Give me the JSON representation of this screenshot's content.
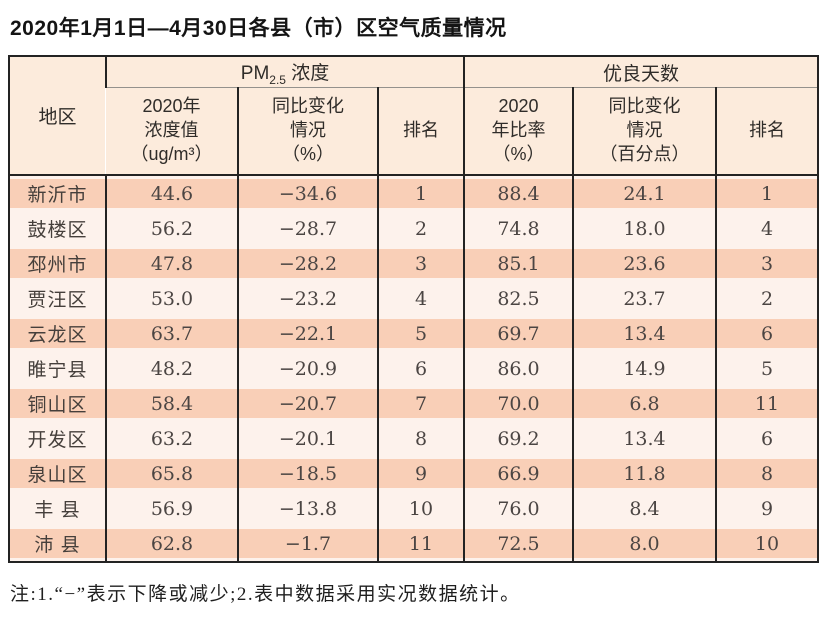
{
  "title": "2020年1月1日—4月30日各县（市）区空气质量情况",
  "note": "注:1.“−”表示下降或减少;2.表中数据采用实况数据统计。",
  "colors": {
    "stripe_salmon": "#f9cfb7",
    "row_light": "#fdf2ec",
    "header_bg": "#fcebdc",
    "grid_border": "#232323",
    "group_divider_gray": "#94918c"
  },
  "table": {
    "header": {
      "region": "地区",
      "pm_group": {
        "prefix": "PM",
        "sub": "2.5",
        "suffix": " 浓度"
      },
      "days_group": "优良天数",
      "sub": [
        [
          "2020年",
          "浓度值",
          "（ug/m³）"
        ],
        [
          "同比变化",
          "情况",
          "（%）"
        ],
        [
          "排名"
        ],
        [
          "2020",
          "年比率",
          "（%）"
        ],
        [
          "同比变化",
          "情况",
          "（百分点）"
        ],
        [
          "排名"
        ]
      ]
    },
    "rows": [
      {
        "region": "新沂市",
        "pm_value": "44.6",
        "pm_change": "−34.6",
        "pm_rank": "1",
        "days_ratio": "88.4",
        "days_change": "24.1",
        "days_rank": "1"
      },
      {
        "region": "鼓楼区",
        "pm_value": "56.2",
        "pm_change": "−28.7",
        "pm_rank": "2",
        "days_ratio": "74.8",
        "days_change": "18.0",
        "days_rank": "4"
      },
      {
        "region": "邳州市",
        "pm_value": "47.8",
        "pm_change": "−28.2",
        "pm_rank": "3",
        "days_ratio": "85.1",
        "days_change": "23.6",
        "days_rank": "3"
      },
      {
        "region": "贾汪区",
        "pm_value": "53.0",
        "pm_change": "−23.2",
        "pm_rank": "4",
        "days_ratio": "82.5",
        "days_change": "23.7",
        "days_rank": "2"
      },
      {
        "region": "云龙区",
        "pm_value": "63.7",
        "pm_change": "−22.1",
        "pm_rank": "5",
        "days_ratio": "69.7",
        "days_change": "13.4",
        "days_rank": "6"
      },
      {
        "region": "睢宁县",
        "pm_value": "48.2",
        "pm_change": "−20.9",
        "pm_rank": "6",
        "days_ratio": "86.0",
        "days_change": "14.9",
        "days_rank": "5"
      },
      {
        "region": "铜山区",
        "pm_value": "58.4",
        "pm_change": "−20.7",
        "pm_rank": "7",
        "days_ratio": "70.0",
        "days_change": "6.8",
        "days_rank": "11"
      },
      {
        "region": "开发区",
        "pm_value": "63.2",
        "pm_change": "−20.1",
        "pm_rank": "8",
        "days_ratio": "69.2",
        "days_change": "13.4",
        "days_rank": "6"
      },
      {
        "region": "泉山区",
        "pm_value": "65.8",
        "pm_change": "−18.5",
        "pm_rank": "9",
        "days_ratio": "66.9",
        "days_change": "11.8",
        "days_rank": "8"
      },
      {
        "region": "丰 县",
        "pm_value": "56.9",
        "pm_change": "−13.8",
        "pm_rank": "10",
        "days_ratio": "76.0",
        "days_change": "8.4",
        "days_rank": "9"
      },
      {
        "region": "沛 县",
        "pm_value": "62.8",
        "pm_change": "−1.7",
        "pm_rank": "11",
        "days_ratio": "72.5",
        "days_change": "8.0",
        "days_rank": "10"
      }
    ]
  }
}
